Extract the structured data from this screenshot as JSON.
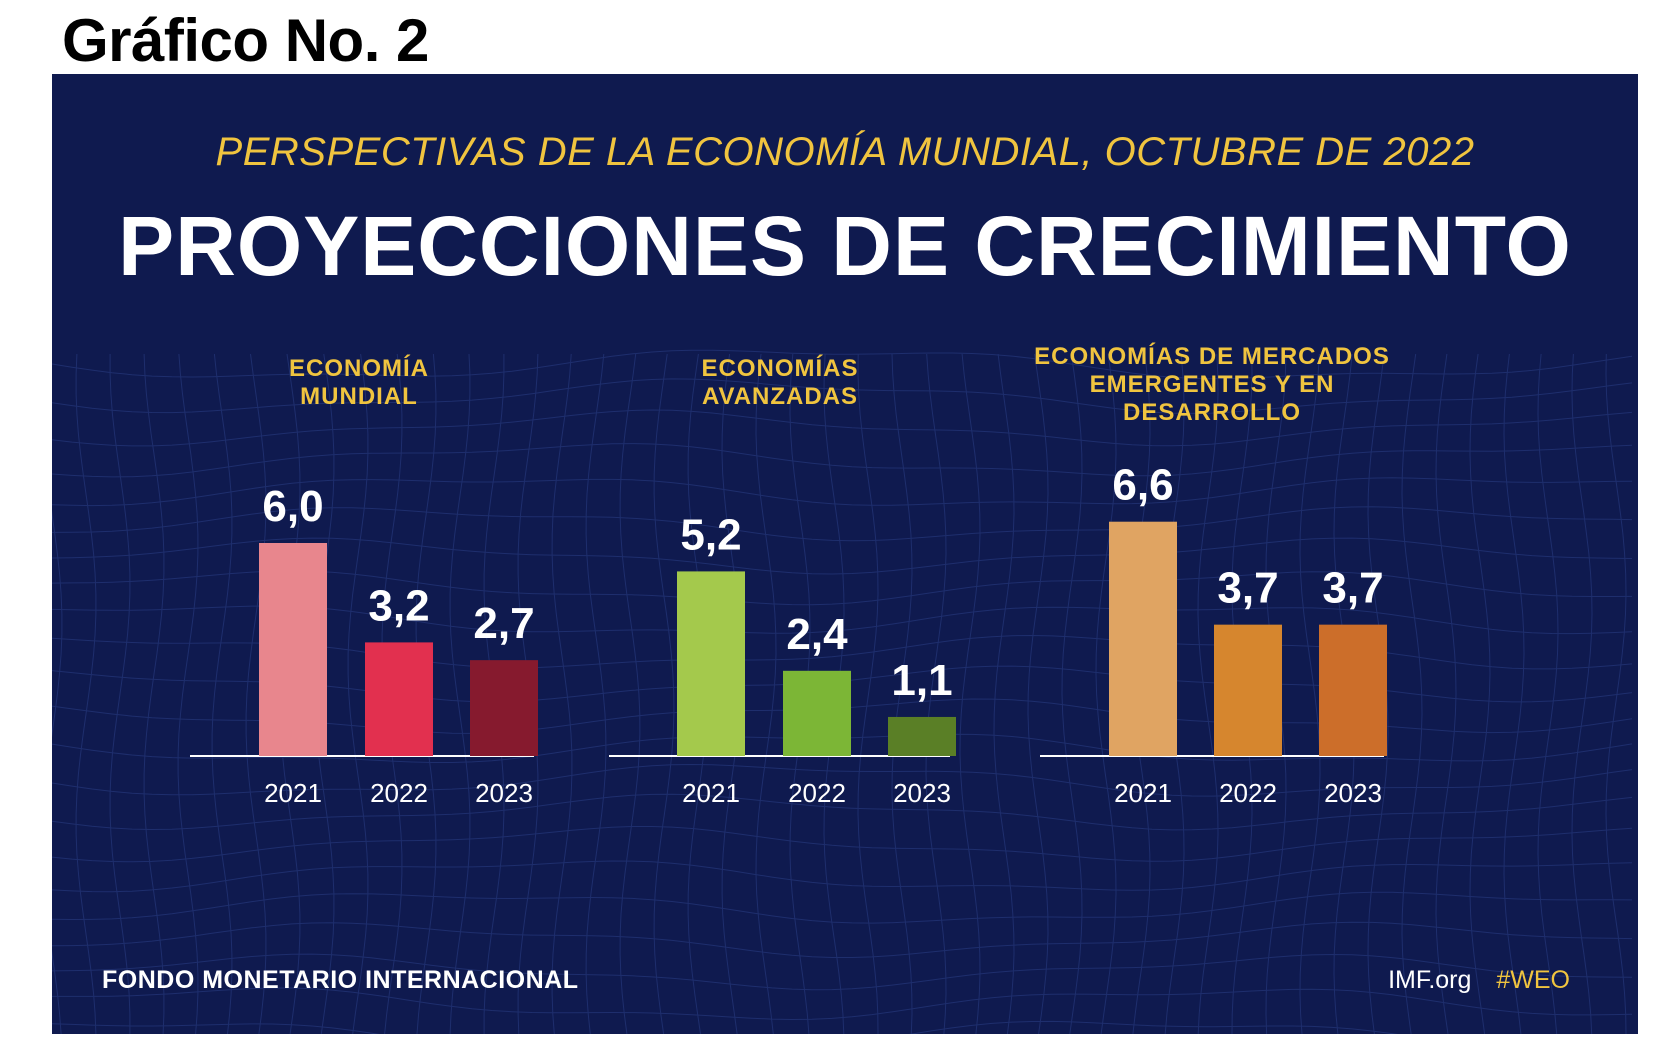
{
  "page_title": "Gráfico No. 2",
  "kicker": "PERSPECTIVAS DE LA ECONOMÍA MUNDIAL, OCTUBRE DE 2022",
  "headline": "PROYECCIONES DE CRECIMIENTO",
  "footer": {
    "org": "FONDO MONETARIO INTERNACIONAL",
    "site": "IMF.org",
    "hashtag": "#WEO"
  },
  "colors": {
    "background": "#0f1a4f",
    "accent": "#f0c43f",
    "text": "#ffffff"
  },
  "chart_data": [
    {
      "type": "bar",
      "title": "ECONOMÍA MUNDIAL",
      "title_lines": [
        "ECONOMÍA",
        "MUNDIAL"
      ],
      "categories": [
        "2021",
        "2022",
        "2023"
      ],
      "values": [
        6.0,
        3.2,
        2.7
      ],
      "labels": [
        "6,0",
        "3,2",
        "2,7"
      ],
      "colors": [
        "#e8868d",
        "#e2304f",
        "#861a2e"
      ]
    },
    {
      "type": "bar",
      "title": "ECONOMÍAS AVANZADAS",
      "title_lines": [
        "ECONOMÍAS",
        "AVANZADAS"
      ],
      "categories": [
        "2021",
        "2022",
        "2023"
      ],
      "values": [
        5.2,
        2.4,
        1.1
      ],
      "labels": [
        "5,2",
        "2,4",
        "1,1"
      ],
      "colors": [
        "#a4c94c",
        "#7cb636",
        "#5a7f26"
      ]
    },
    {
      "type": "bar",
      "title": "ECONOMÍAS DE MERCADOS EMERGENTES Y EN DESARROLLO",
      "title_lines": [
        "ECONOMÍAS DE MERCADOS",
        "EMERGENTES Y EN",
        "DESARROLLO"
      ],
      "categories": [
        "2021",
        "2022",
        "2023"
      ],
      "values": [
        6.6,
        3.7,
        3.7
      ],
      "labels": [
        "6,6",
        "3,7",
        "3,7"
      ],
      "colors": [
        "#e0a462",
        "#d6862e",
        "#cc6e2a"
      ]
    }
  ]
}
